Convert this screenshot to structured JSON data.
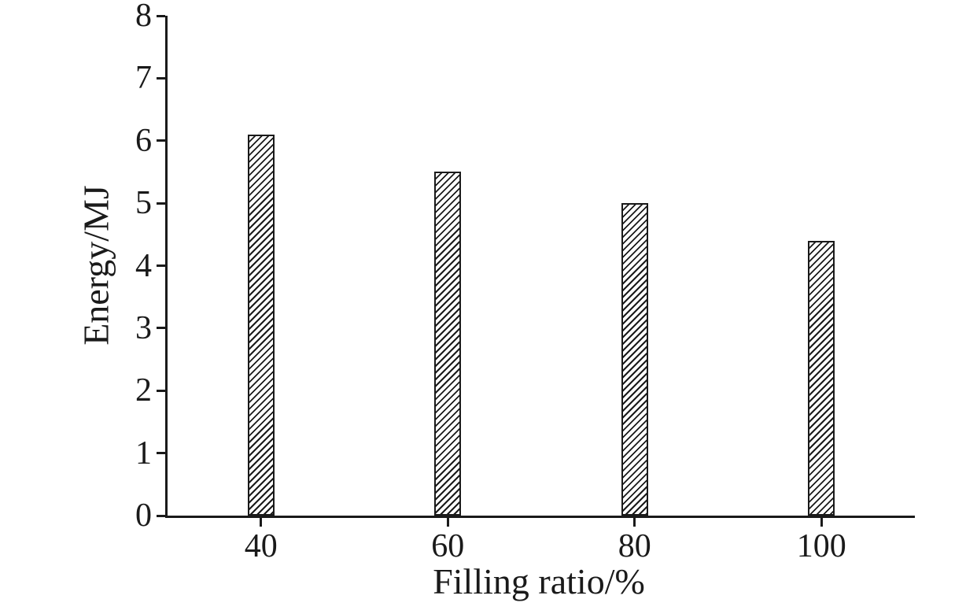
{
  "chart_data": {
    "type": "bar",
    "title": "",
    "categories": [
      "40",
      "60",
      "80",
      "100"
    ],
    "values": [
      6.1,
      5.5,
      5.0,
      4.4
    ],
    "xlabel": "Filling ratio/%",
    "ylabel": "Energy/MJ",
    "ylim": [
      0,
      8
    ],
    "ytick_step": 1,
    "yticks": [
      0,
      1,
      2,
      3,
      4,
      5,
      6,
      7,
      8
    ],
    "grid": false,
    "legend": "none",
    "bar_fill": "#ffffff",
    "bar_hatch": "diagonal-forward",
    "axis_color": "#1a1a1a",
    "background_color": "#ffffff"
  }
}
